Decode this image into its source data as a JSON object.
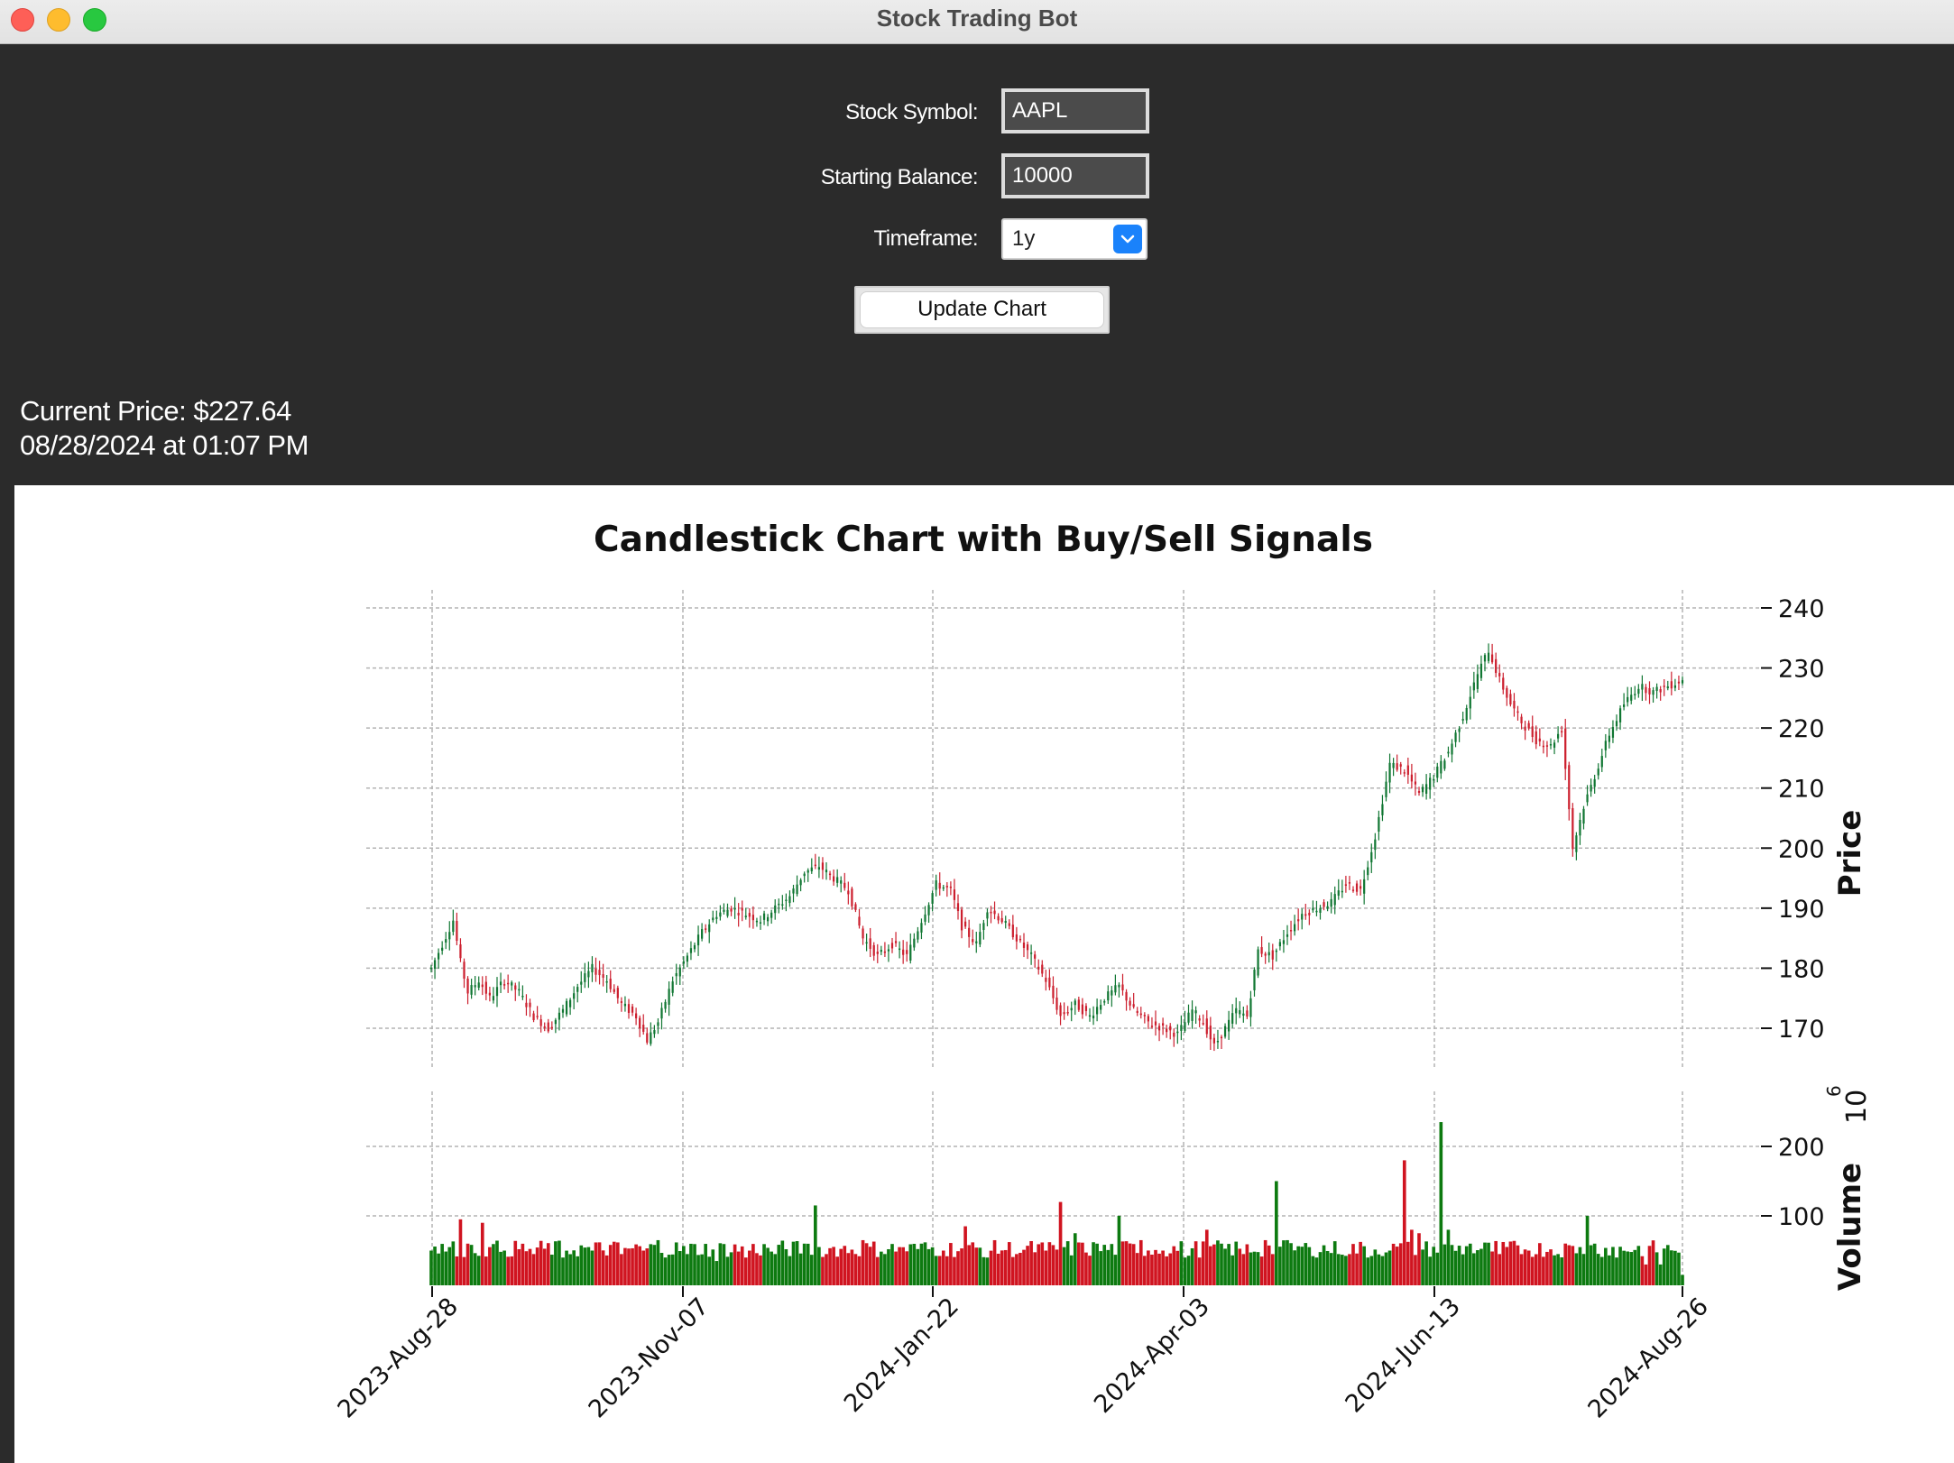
{
  "window": {
    "title": "Stock Trading Bot"
  },
  "form": {
    "symbol_label": "Stock Symbol:",
    "symbol_value": "AAPL",
    "balance_label": "Starting Balance:",
    "balance_value": "10000",
    "timeframe_label": "Timeframe:",
    "timeframe_value": "1y",
    "update_label": "Update Chart"
  },
  "status": {
    "current_price": "Current Price: $227.64",
    "timestamp": "08/28/2024 at 01:07 PM"
  },
  "chart_data": {
    "type": "candlestick",
    "title": "Candlestick Chart with Buy/Sell Signals",
    "ylabel": "Price",
    "volume_label": "Volume",
    "volume_exponent": "6",
    "ylim": [
      162,
      238
    ],
    "yticks": [
      170,
      180,
      190,
      200,
      210,
      220,
      230,
      240
    ],
    "volume_ylim": [
      0,
      240
    ],
    "volume_ticks": [
      100,
      200
    ],
    "x_ticks": [
      "2023-Aug-28",
      "2023-Nov-07",
      "2024-Jan-22",
      "2024-Apr-03",
      "2024-Jun-13",
      "2024-Aug-26"
    ],
    "grid": true,
    "up_color": "#117733",
    "down_color": "#cc1f2e",
    "close_points": [
      [
        0,
        180
      ],
      [
        3,
        184
      ],
      [
        6,
        188
      ],
      [
        8,
        181
      ],
      [
        10,
        176
      ],
      [
        13,
        178
      ],
      [
        16,
        175
      ],
      [
        20,
        178
      ],
      [
        24,
        176
      ],
      [
        28,
        172
      ],
      [
        32,
        170
      ],
      [
        36,
        173
      ],
      [
        40,
        177
      ],
      [
        44,
        180
      ],
      [
        48,
        178
      ],
      [
        52,
        174
      ],
      [
        56,
        172
      ],
      [
        59,
        168
      ],
      [
        62,
        171
      ],
      [
        66,
        178
      ],
      [
        70,
        182
      ],
      [
        74,
        186
      ],
      [
        78,
        189
      ],
      [
        82,
        190
      ],
      [
        86,
        189
      ],
      [
        90,
        188
      ],
      [
        94,
        190
      ],
      [
        98,
        192
      ],
      [
        102,
        196
      ],
      [
        106,
        197
      ],
      [
        110,
        195
      ],
      [
        114,
        193
      ],
      [
        118,
        185
      ],
      [
        122,
        182
      ],
      [
        126,
        184
      ],
      [
        130,
        182
      ],
      [
        134,
        188
      ],
      [
        138,
        194
      ],
      [
        142,
        193
      ],
      [
        145,
        187
      ],
      [
        149,
        184
      ],
      [
        152,
        190
      ],
      [
        156,
        188
      ],
      [
        160,
        185
      ],
      [
        164,
        182
      ],
      [
        168,
        178
      ],
      [
        172,
        172
      ],
      [
        176,
        174
      ],
      [
        180,
        172
      ],
      [
        184,
        175
      ],
      [
        188,
        177
      ],
      [
        192,
        173
      ],
      [
        196,
        171
      ],
      [
        200,
        170
      ],
      [
        204,
        169
      ],
      [
        208,
        173
      ],
      [
        211,
        171
      ],
      [
        214,
        167
      ],
      [
        217,
        170
      ],
      [
        220,
        173
      ],
      [
        223,
        172
      ],
      [
        226,
        183
      ],
      [
        230,
        182
      ],
      [
        234,
        186
      ],
      [
        238,
        189
      ],
      [
        242,
        190
      ],
      [
        246,
        191
      ],
      [
        250,
        194
      ],
      [
        254,
        193
      ],
      [
        258,
        202
      ],
      [
        262,
        214
      ],
      [
        266,
        213
      ],
      [
        270,
        209
      ],
      [
        274,
        212
      ],
      [
        278,
        216
      ],
      [
        282,
        222
      ],
      [
        286,
        229
      ],
      [
        289,
        233
      ],
      [
        292,
        228
      ],
      [
        295,
        224
      ],
      [
        298,
        221
      ],
      [
        302,
        218
      ],
      [
        306,
        217
      ],
      [
        309,
        220
      ],
      [
        312,
        200
      ],
      [
        315,
        207
      ],
      [
        318,
        212
      ],
      [
        322,
        219
      ],
      [
        326,
        224
      ],
      [
        330,
        227
      ],
      [
        334,
        226
      ],
      [
        338,
        227
      ],
      [
        342,
        228
      ]
    ],
    "volume_levels": [
      [
        0,
        50
      ],
      [
        5,
        55
      ],
      [
        8,
        95
      ],
      [
        10,
        60
      ],
      [
        14,
        90
      ],
      [
        16,
        55
      ],
      [
        20,
        50
      ],
      [
        28,
        45
      ],
      [
        36,
        40
      ],
      [
        44,
        50
      ],
      [
        52,
        45
      ],
      [
        58,
        50
      ],
      [
        62,
        65
      ],
      [
        70,
        45
      ],
      [
        78,
        35
      ],
      [
        86,
        40
      ],
      [
        94,
        45
      ],
      [
        102,
        60
      ],
      [
        105,
        115
      ],
      [
        108,
        45
      ],
      [
        118,
        65
      ],
      [
        128,
        55
      ],
      [
        134,
        60
      ],
      [
        140,
        50
      ],
      [
        146,
        85
      ],
      [
        152,
        40
      ],
      [
        160,
        45
      ],
      [
        168,
        50
      ],
      [
        172,
        120
      ],
      [
        176,
        75
      ],
      [
        182,
        60
      ],
      [
        188,
        100
      ],
      [
        194,
        65
      ],
      [
        200,
        50
      ],
      [
        206,
        40
      ],
      [
        212,
        80
      ],
      [
        216,
        60
      ],
      [
        222,
        45
      ],
      [
        228,
        65
      ],
      [
        231,
        150
      ],
      [
        234,
        65
      ],
      [
        240,
        55
      ],
      [
        248,
        45
      ],
      [
        256,
        40
      ],
      [
        262,
        50
      ],
      [
        266,
        180
      ],
      [
        268,
        80
      ],
      [
        270,
        75
      ],
      [
        276,
        235
      ],
      [
        278,
        80
      ],
      [
        284,
        60
      ],
      [
        292,
        45
      ],
      [
        300,
        50
      ],
      [
        308,
        45
      ],
      [
        314,
        55
      ],
      [
        316,
        100
      ],
      [
        318,
        60
      ],
      [
        324,
        40
      ],
      [
        332,
        30
      ],
      [
        336,
        30
      ],
      [
        342,
        15
      ]
    ]
  }
}
